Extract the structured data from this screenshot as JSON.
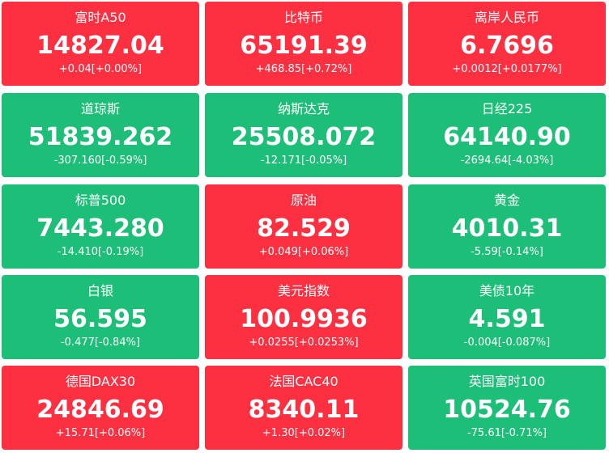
{
  "tiles": [
    {
      "name": "富时A50",
      "value": "14827.04",
      "change": "+0.04[+0.00%]",
      "color": "#fc3041"
    },
    {
      "name": "比特币",
      "value": "65191.39",
      "change": "+468.85[+0.72%]",
      "color": "#fc3041"
    },
    {
      "name": "离岸人民币",
      "value": "6.7696",
      "change": "+0.0012[+0.0177%]",
      "color": "#fc3041"
    },
    {
      "name": "道琼斯",
      "value": "51839.262",
      "change": "-307.160[-0.59%]",
      "color": "#1dbf78"
    },
    {
      "name": "纳斯达克",
      "value": "25508.072",
      "change": "-12.171[-0.05%]",
      "color": "#1dbf78"
    },
    {
      "name": "日经225",
      "value": "64140.90",
      "change": "-2694.64[-4.03%]",
      "color": "#1dbf78"
    },
    {
      "name": "标普500",
      "value": "7443.280",
      "change": "-14.410[-0.19%]",
      "color": "#1dbf78"
    },
    {
      "name": "原油",
      "value": "82.529",
      "change": "+0.049[+0.06%]",
      "color": "#fc3041"
    },
    {
      "name": "黄金",
      "value": "4010.31",
      "change": "-5.59[-0.14%]",
      "color": "#1dbf78"
    },
    {
      "name": "白银",
      "value": "56.595",
      "change": "-0.477[-0.84%]",
      "color": "#1dbf78"
    },
    {
      "name": "美元指数",
      "value": "100.9936",
      "change": "+0.0255[+0.0253%]",
      "color": "#fc3041"
    },
    {
      "name": "美债10年",
      "value": "4.591",
      "change": "-0.004[-0.087%]",
      "color": "#1dbf78"
    },
    {
      "name": "德国DAX30",
      "value": "24846.69",
      "change": "+15.71[+0.06%]",
      "color": "#fc3041"
    },
    {
      "name": "法国CAC40",
      "value": "8340.11",
      "change": "+1.30[+0.02%]",
      "color": "#fc3041"
    },
    {
      "name": "英国富时100",
      "value": "10524.76",
      "change": "-75.61[-0.71%]",
      "color": "#1dbf78"
    }
  ]
}
